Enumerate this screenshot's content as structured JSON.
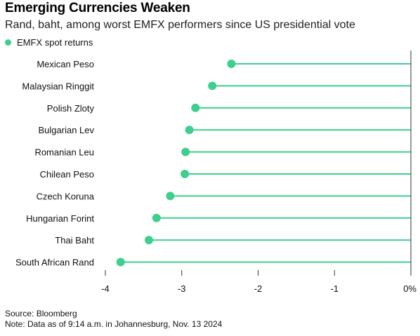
{
  "header": {
    "title": "Emerging Currencies Weaken",
    "subtitle": "Rand, baht, among worst EMFX performers since US presidential vote"
  },
  "legend": {
    "label": "EMFX spot returns"
  },
  "colors": {
    "series": "#3ECF8E",
    "axis": "#333333",
    "text": "#111111"
  },
  "chart_data": {
    "type": "lollipop",
    "series": [
      {
        "name": "EMFX spot returns"
      }
    ],
    "categories": [
      "Mexican Peso",
      "Malaysian Ringgit",
      "Polish Zloty",
      "Bulgarian Lev",
      "Romanian Leu",
      "Chilean Peso",
      "Czech Koruna",
      "Hungarian Forint",
      "Thai Baht",
      "South African Rand"
    ],
    "values": [
      -2.35,
      -2.6,
      -2.82,
      -2.9,
      -2.95,
      -2.96,
      -3.15,
      -3.33,
      -3.43,
      -3.8
    ],
    "xlim": [
      -4,
      0
    ],
    "xticks": [
      -4,
      -3,
      -2,
      -1,
      0
    ],
    "xtick_labels": [
      "-4",
      "-3",
      "-2",
      "-1",
      "0%"
    ],
    "grid": false
  },
  "footer": {
    "source": "Source: Bloomberg",
    "note": "Note: Data as of 9:14 a.m. in Johannesburg, Nov. 13 2024"
  }
}
